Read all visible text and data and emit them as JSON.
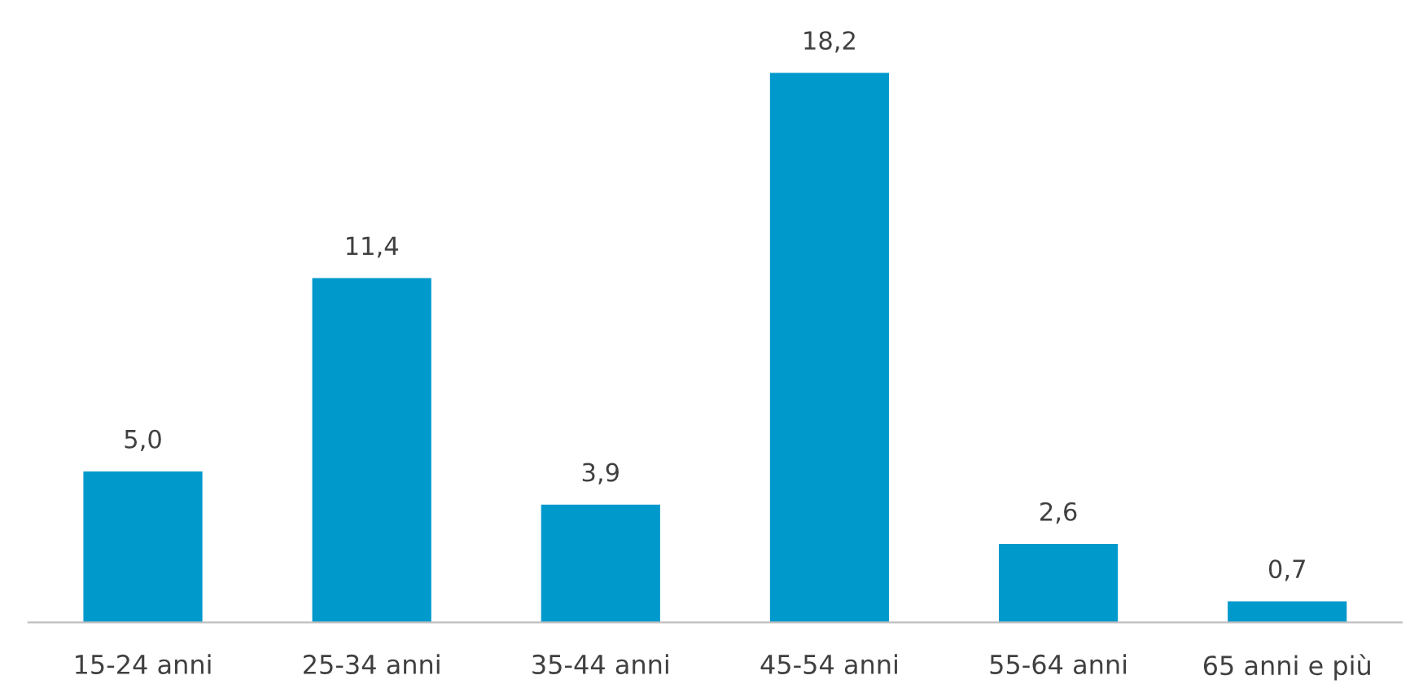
{
  "chart_data": {
    "type": "bar",
    "categories": [
      "15-24 anni",
      "25-34 anni",
      "35-44 anni",
      "45-54 anni",
      "55-64 anni",
      "65 anni e più"
    ],
    "values": [
      5.0,
      11.4,
      3.9,
      18.2,
      2.6,
      0.7
    ],
    "value_labels": [
      "5,0",
      "11,4",
      "3,9",
      "18,2",
      "2,6",
      "0,7"
    ],
    "color": "#0099cc",
    "grid": false,
    "legend": false
  }
}
